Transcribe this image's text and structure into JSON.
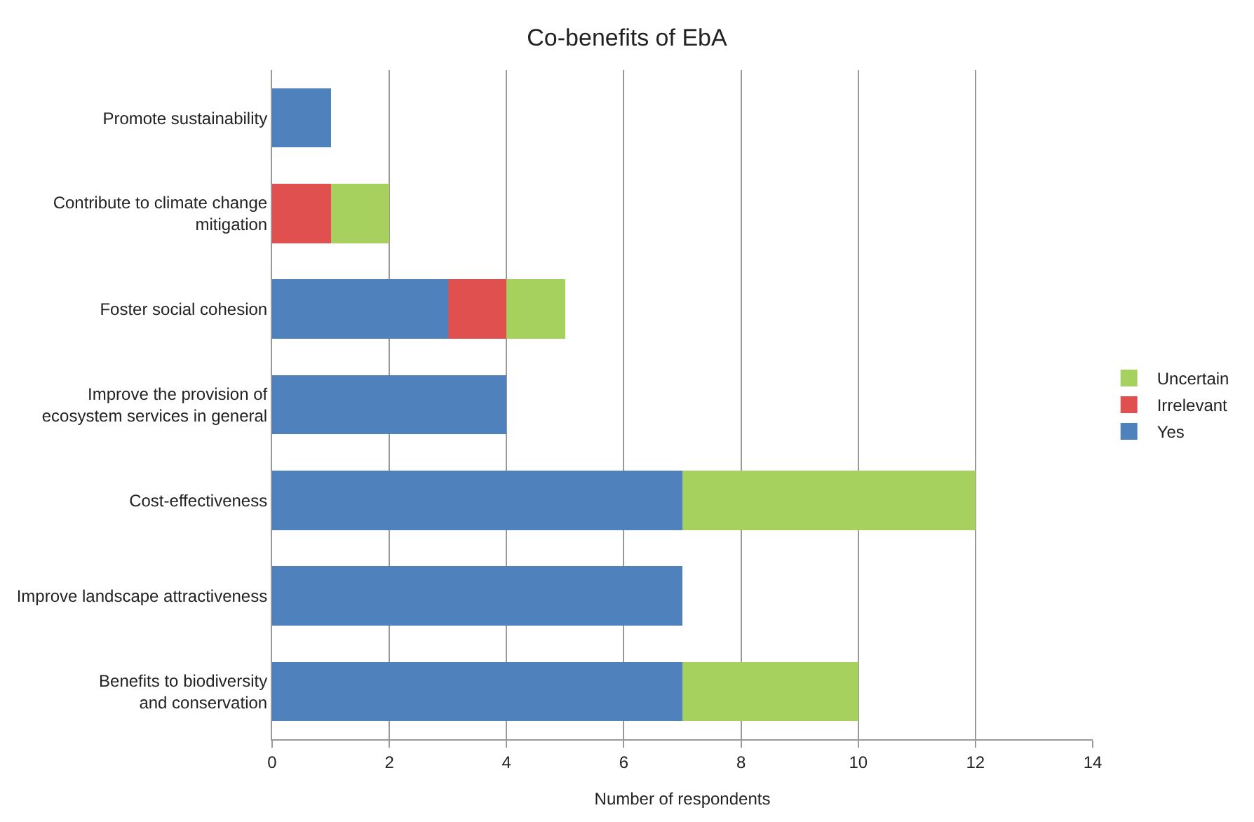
{
  "chart_data": {
    "type": "bar",
    "orientation": "horizontal",
    "stacked": true,
    "title": "Co-benefits of EbA",
    "xlabel": "Number of respondents",
    "categories": [
      "Promote sustainability",
      "Contribute to climate change\nmitigation",
      "Foster social cohesion",
      "Improve the provision of\necosystem services in general",
      "Cost-effectiveness",
      "Improve landscape attractiveness",
      "Benefits to biodiversity\nand conservation"
    ],
    "series": [
      {
        "name": "Yes",
        "color": "#4f81bd",
        "values": [
          1,
          null,
          3,
          4,
          7,
          7,
          7
        ]
      },
      {
        "name": "Irrelevant",
        "color": "#e0504e",
        "values": [
          null,
          1,
          1,
          null,
          null,
          null,
          null
        ]
      },
      {
        "name": "Uncertain",
        "color": "#a6d15e",
        "values": [
          null,
          1,
          1,
          null,
          5,
          null,
          3
        ]
      }
    ],
    "xlim": [
      0,
      14
    ],
    "xticks": [
      0,
      2,
      4,
      6,
      8,
      10,
      12,
      14
    ],
    "grid": "x",
    "legend": "right"
  }
}
